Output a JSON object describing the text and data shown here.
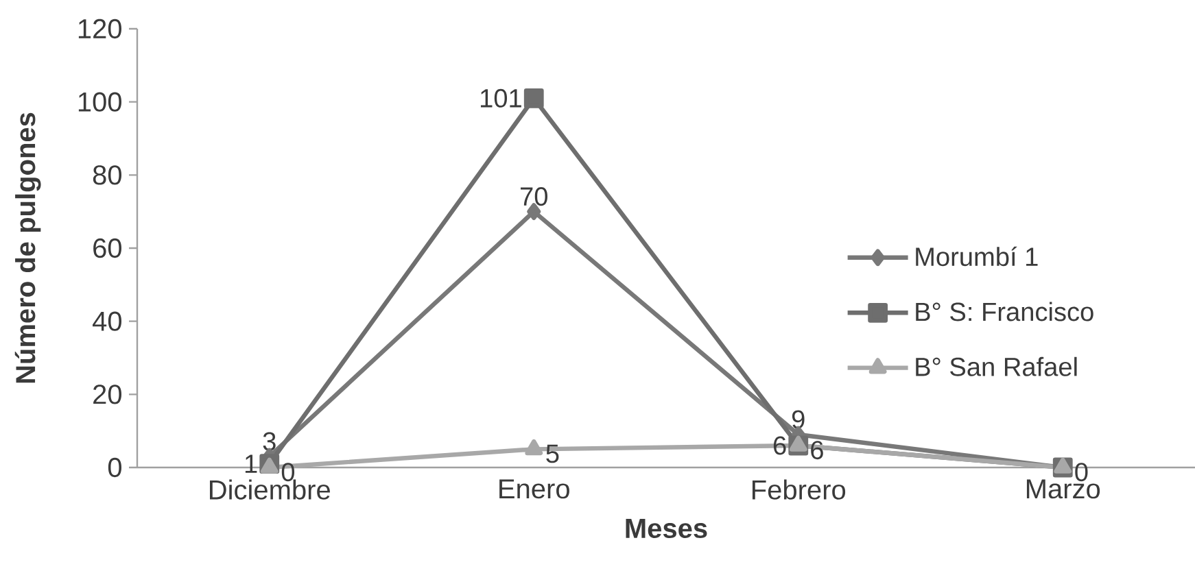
{
  "chart_data": {
    "type": "line",
    "xlabel": "Meses",
    "ylabel": "Número de pulgones",
    "categories": [
      "Diciembre",
      "Enero",
      "Febrero",
      "Marzo"
    ],
    "ylim": [
      0,
      120
    ],
    "yticks": [
      0,
      20,
      40,
      60,
      80,
      100,
      120
    ],
    "legend": "right",
    "line_style": "solid",
    "series": [
      {
        "name": "Morumbí 1",
        "color": "#787878",
        "marker": "diamond",
        "values": [
          3,
          70,
          9,
          0
        ],
        "value_labels": [
          "3",
          "70",
          "9",
          null
        ]
      },
      {
        "name": "B° S: Francisco",
        "color": "#6e6e6e",
        "marker": "square",
        "values": [
          1,
          101,
          6,
          0
        ],
        "value_labels": [
          "1",
          "101",
          "6",
          null
        ]
      },
      {
        "name": "B° San Rafael",
        "color": "#a8a8a8",
        "marker": "triangle",
        "values": [
          0,
          5,
          6,
          0
        ],
        "value_labels": [
          "0",
          "5",
          "6",
          "0"
        ]
      }
    ]
  }
}
